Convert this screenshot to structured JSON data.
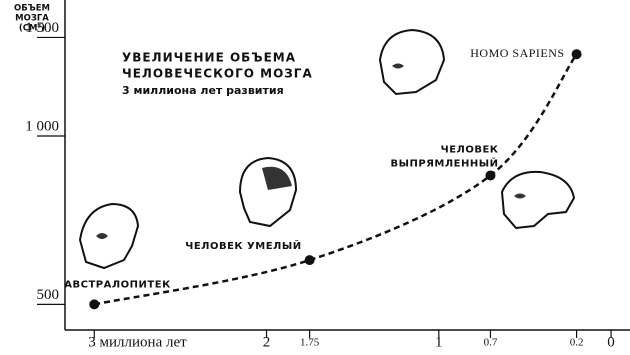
{
  "chart_data": {
    "type": "line",
    "title_lines": [
      "УВЕЛИЧЕНИЕ ОБЪЕМА",
      "ЧЕЛОВЕЧЕСКОГО МОЗГА"
    ],
    "subtitle": "3 миллиона лет развития",
    "y_label_lines": [
      "ОБЪЕМ",
      "МОЗГА",
      "(СМ³)"
    ],
    "x": [
      3,
      1.75,
      0.7,
      0.2
    ],
    "values": [
      500,
      600,
      850,
      1400
    ],
    "point_labels": [
      [
        "АВСТРАЛОПИТЕК"
      ],
      [
        "ЧЕЛОВЕК УМЕЛЫЙ"
      ],
      [
        "ЧЕЛОВЕК",
        "ВЫПРЯМЛЕННЫЙ"
      ],
      [
        "HOMO SAPIENS"
      ]
    ],
    "color": "#111111",
    "xlim": [
      3.17,
      -0.11
    ],
    "xticks": [
      {
        "value": 3,
        "label": "3 миллиона лет"
      },
      2,
      1.75,
      1,
      0.7,
      0.2,
      0
    ],
    "ylim": [
      450,
      1750
    ],
    "log_y": true,
    "yticks": [
      500,
      {
        "value": 1000,
        "label": "1 000"
      },
      {
        "value": 1500,
        "label": "1 500"
      }
    ]
  }
}
